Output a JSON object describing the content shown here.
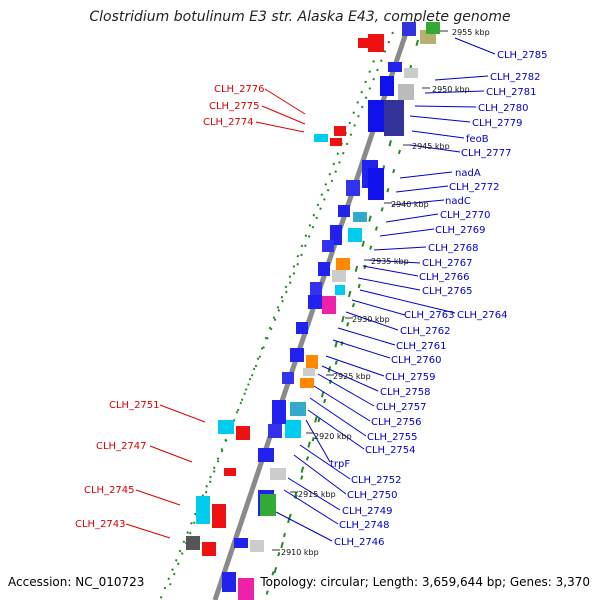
{
  "title": "Clostridium botulinum E3 str. Alaska E43, complete genome",
  "footer": {
    "accession": "Accession: NC_010723",
    "summary": "Topology: circular; Length: 3,659,644 bp; Genes: 3,370"
  },
  "colors": {
    "backbone": "#888888",
    "forward_label": "#0000cc",
    "reverse_label": "#dd0000",
    "gc_dots": "#228822"
  },
  "ticks": [
    "2955 kbp",
    "2950 kbp",
    "2945 kbp",
    "2940 kbp",
    "2935 kbp",
    "2930 kbp",
    "2925 kbp",
    "2920 kbp",
    "2915 kbp",
    "2910 kbp"
  ],
  "right_labels": [
    "CLH_2785",
    "CLH_2782",
    "CLH_2781",
    "CLH_2780",
    "CLH_2779",
    "feoB",
    "CLH_2777",
    "nadA",
    "CLH_2772",
    "nadC",
    "CLH_2770",
    "CLH_2769",
    "CLH_2768",
    "CLH_2767",
    "CLH_2766",
    "CLH_2765",
    "CLH_2764",
    "CLH_2763",
    "CLH_2762",
    "CLH_2761",
    "CLH_2760",
    "CLH_2759",
    "CLH_2758",
    "CLH_2757",
    "CLH_2756",
    "CLH_2755",
    "CLH_2754",
    "trpF",
    "CLH_2752",
    "CLH_2750",
    "CLH_2749",
    "CLH_2748",
    "CLH_2746"
  ],
  "left_labels": [
    "CLH_2776",
    "CLH_2775",
    "CLH_2774",
    "CLH_2751",
    "CLH_2747",
    "CLH_2745",
    "CLH_2743"
  ]
}
